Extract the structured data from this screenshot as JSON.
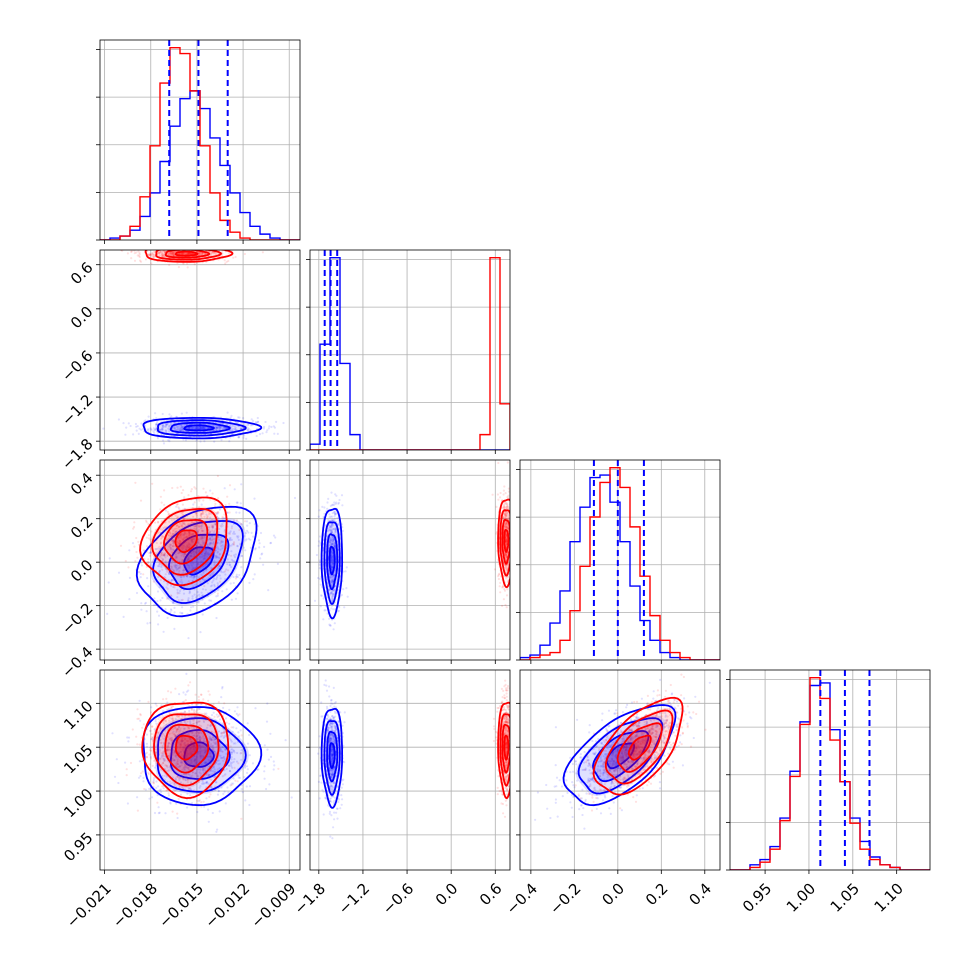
{
  "chart_data": {
    "type": "corner",
    "params": [
      {
        "ticks": [
          -0.021,
          -0.018,
          -0.015,
          -0.012,
          -0.009
        ],
        "tick_labels": [
          "−0.021",
          "−0.018",
          "−0.015",
          "−0.012",
          "−0.009"
        ],
        "range": [
          -0.0213,
          -0.0083
        ]
      },
      {
        "ticks": [
          -1.8,
          -1.2,
          -0.6,
          0.0,
          0.6
        ],
        "tick_labels": [
          "−1.8",
          "−1.2",
          "−0.6",
          "0.0",
          "0.6"
        ],
        "range": [
          -1.92,
          0.8
        ]
      },
      {
        "ticks": [
          -0.4,
          -0.2,
          0.0,
          0.2,
          0.4
        ],
        "tick_labels": [
          "−0.4",
          "−0.2",
          "0.0",
          "0.2",
          "0.4"
        ],
        "range": [
          -0.45,
          0.47
        ]
      },
      {
        "ticks": [
          0.95,
          1.0,
          1.05,
          1.1
        ],
        "tick_labels": [
          "0.95",
          "1.00",
          "1.05",
          "1.10"
        ],
        "range": [
          0.91,
          1.138
        ]
      }
    ],
    "series": [
      {
        "name": "",
        "color": "#0000ff",
        "mean": [
          -0.0149,
          -1.62,
          0.01,
          1.041
        ],
        "std": [
          0.0019,
          0.07,
          0.125,
          0.028
        ],
        "corr": {
          "0-2": 0.35,
          "2-3": 0.6
        }
      },
      {
        "name": "",
        "color": "#ff0000",
        "mean": [
          -0.0157,
          0.75,
          0.1,
          1.05
        ],
        "std": [
          0.0014,
          0.055,
          0.1,
          0.027
        ],
        "corr": {
          "0-2": 0.2,
          "2-3": 0.6
        }
      }
    ],
    "quantile_lines": {
      "color": "#0000ff",
      "style": "dashed",
      "values": [
        [
          -0.0168,
          -0.0149,
          -0.013
        ],
        [
          -1.72,
          -1.64,
          -1.55
        ],
        [
          -0.11,
          0.0,
          0.12
        ],
        [
          1.013,
          1.041,
          1.069
        ]
      ]
    },
    "histograms": {
      "bins": 20,
      "p0": {
        "blue": [
          0,
          1,
          2,
          5,
          12,
          24,
          40,
          58,
          72,
          76,
          67,
          52,
          38,
          24,
          14,
          7,
          3,
          1,
          0,
          0
        ],
        "red": [
          0,
          0,
          2,
          7,
          22,
          48,
          80,
          98,
          95,
          76,
          48,
          24,
          10,
          4,
          1,
          0,
          0,
          0,
          0,
          0
        ]
      },
      "p1": {
        "blue": [
          3,
          55,
          100,
          45,
          8,
          0,
          0,
          0,
          0,
          0,
          0,
          0,
          0,
          0,
          0,
          0,
          0,
          0,
          0,
          0
        ],
        "red": [
          0,
          0,
          0,
          0,
          0,
          0,
          0,
          0,
          0,
          0,
          0,
          0,
          0,
          0,
          0,
          0,
          0,
          8,
          100,
          24
        ]
      },
      "p2": {
        "blue": [
          1,
          2,
          6,
          15,
          28,
          48,
          62,
          74,
          75,
          64,
          48,
          30,
          16,
          8,
          3,
          1,
          0,
          0,
          0,
          0
        ],
        "red": [
          0,
          1,
          2,
          3,
          8,
          20,
          38,
          58,
          72,
          78,
          70,
          54,
          34,
          18,
          8,
          3,
          1,
          0,
          0,
          0
        ]
      },
      "p3": {
        "blue": [
          0,
          0,
          2,
          4,
          9,
          20,
          38,
          57,
          71,
          72,
          54,
          34,
          20,
          11,
          5,
          2,
          1,
          0,
          0,
          0
        ],
        "red": [
          0,
          0,
          1,
          3,
          8,
          19,
          36,
          56,
          74,
          66,
          50,
          34,
          18,
          8,
          4,
          2,
          1,
          0,
          0,
          0
        ]
      }
    },
    "grid": true,
    "title": "",
    "xlabel": "",
    "ylabel": ""
  }
}
